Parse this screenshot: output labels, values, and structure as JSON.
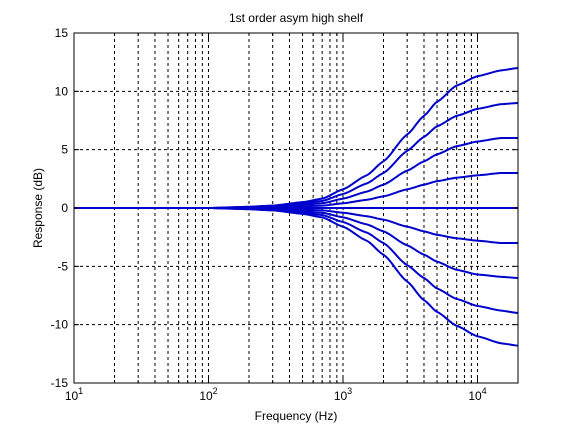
{
  "chart_data": {
    "type": "line",
    "title": "1st order asym high shelf",
    "xlabel": "Frequency (Hz)",
    "ylabel": "Response (dB)",
    "x_scale": "log",
    "xlim": [
      10,
      20000
    ],
    "ylim": [
      -15,
      15
    ],
    "x_major_ticks": [
      {
        "value": 10,
        "base": "10",
        "exp": "1"
      },
      {
        "value": 100,
        "base": "10",
        "exp": "2"
      },
      {
        "value": 1000,
        "base": "10",
        "exp": "3"
      },
      {
        "value": 10000,
        "base": "10",
        "exp": "4"
      }
    ],
    "y_ticks": [
      15,
      10,
      5,
      0,
      -5,
      -10,
      -15
    ],
    "grid": true,
    "grid_style": "dotted",
    "line_color": "#0000cc",
    "x": [
      10,
      20,
      50,
      100,
      200,
      300,
      500,
      700,
      1000,
      1500,
      2000,
      3000,
      4000,
      5000,
      7000,
      10000,
      15000,
      20000
    ],
    "series": [
      {
        "values": [
          0,
          0,
          0,
          0,
          0.1,
          0.2,
          0.5,
          0.8,
          1.6,
          2.8,
          4.0,
          6.3,
          7.9,
          9.1,
          10.5,
          11.3,
          11.8,
          12.0
        ]
      },
      {
        "values": [
          0,
          0,
          0,
          0,
          0.1,
          0.2,
          0.4,
          0.6,
          1.2,
          2.1,
          3.0,
          4.9,
          6.1,
          7.0,
          7.9,
          8.5,
          8.9,
          9.0
        ]
      },
      {
        "values": [
          0,
          0,
          0,
          0,
          0.05,
          0.1,
          0.3,
          0.4,
          0.8,
          1.4,
          2.0,
          3.2,
          4.0,
          4.6,
          5.3,
          5.7,
          6.0,
          6.0
        ]
      },
      {
        "values": [
          0,
          0,
          0,
          0,
          0,
          0.05,
          0.15,
          0.2,
          0.4,
          0.7,
          1.0,
          1.6,
          2.0,
          2.3,
          2.6,
          2.8,
          3.0,
          3.0
        ]
      },
      {
        "values": [
          0,
          0,
          0,
          0,
          0,
          0,
          0,
          0,
          0,
          0,
          0,
          0,
          0,
          0,
          0,
          0,
          0,
          0
        ]
      },
      {
        "values": [
          0,
          0,
          0,
          0,
          -0.05,
          -0.1,
          -0.15,
          -0.2,
          -0.4,
          -0.7,
          -1.0,
          -1.6,
          -2.0,
          -2.3,
          -2.6,
          -2.8,
          -3.0,
          -3.0
        ]
      },
      {
        "values": [
          0,
          0,
          0,
          0,
          -0.05,
          -0.1,
          -0.3,
          -0.4,
          -0.8,
          -1.4,
          -2.0,
          -3.2,
          -4.0,
          -4.6,
          -5.3,
          -5.7,
          -5.9,
          -6.0
        ]
      },
      {
        "values": [
          0,
          0,
          0,
          0,
          -0.1,
          -0.2,
          -0.4,
          -0.6,
          -1.2,
          -2.1,
          -3.0,
          -4.9,
          -6.0,
          -6.9,
          -7.8,
          -8.4,
          -8.8,
          -9.0
        ]
      },
      {
        "values": [
          0,
          0,
          0,
          0,
          -0.1,
          -0.2,
          -0.5,
          -0.8,
          -1.6,
          -2.8,
          -4.0,
          -6.3,
          -7.9,
          -8.9,
          -10.1,
          -11.0,
          -11.6,
          -11.8
        ]
      }
    ]
  }
}
